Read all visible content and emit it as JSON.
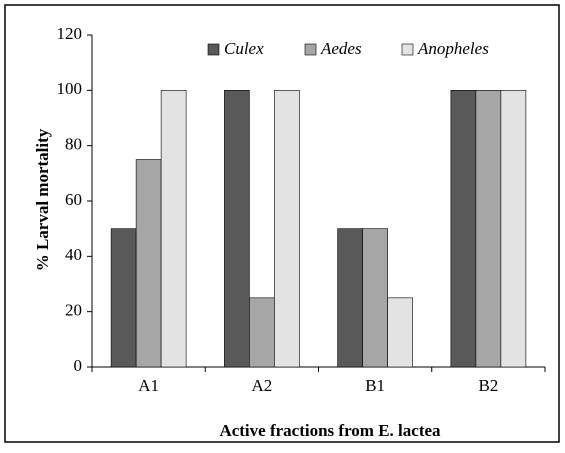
{
  "chart_data": {
    "type": "bar",
    "xlabel": "Active fractions from E. lactea",
    "ylabel": "% Larval mortality",
    "categories": [
      "A1",
      "A2",
      "B1",
      "B2"
    ],
    "series": [
      {
        "name": "Culex",
        "color": "#595959",
        "values": [
          50,
          100,
          50,
          100
        ]
      },
      {
        "name": "Aedes",
        "color": "#a6a6a6",
        "values": [
          75,
          25,
          50,
          100
        ]
      },
      {
        "name": "Anopheles",
        "color": "#e3e3e3",
        "values": [
          100,
          100,
          25,
          100
        ]
      }
    ],
    "ylim": [
      0,
      120
    ],
    "yticks": [
      0,
      20,
      40,
      60,
      80,
      100,
      120
    ],
    "grid": false
  }
}
